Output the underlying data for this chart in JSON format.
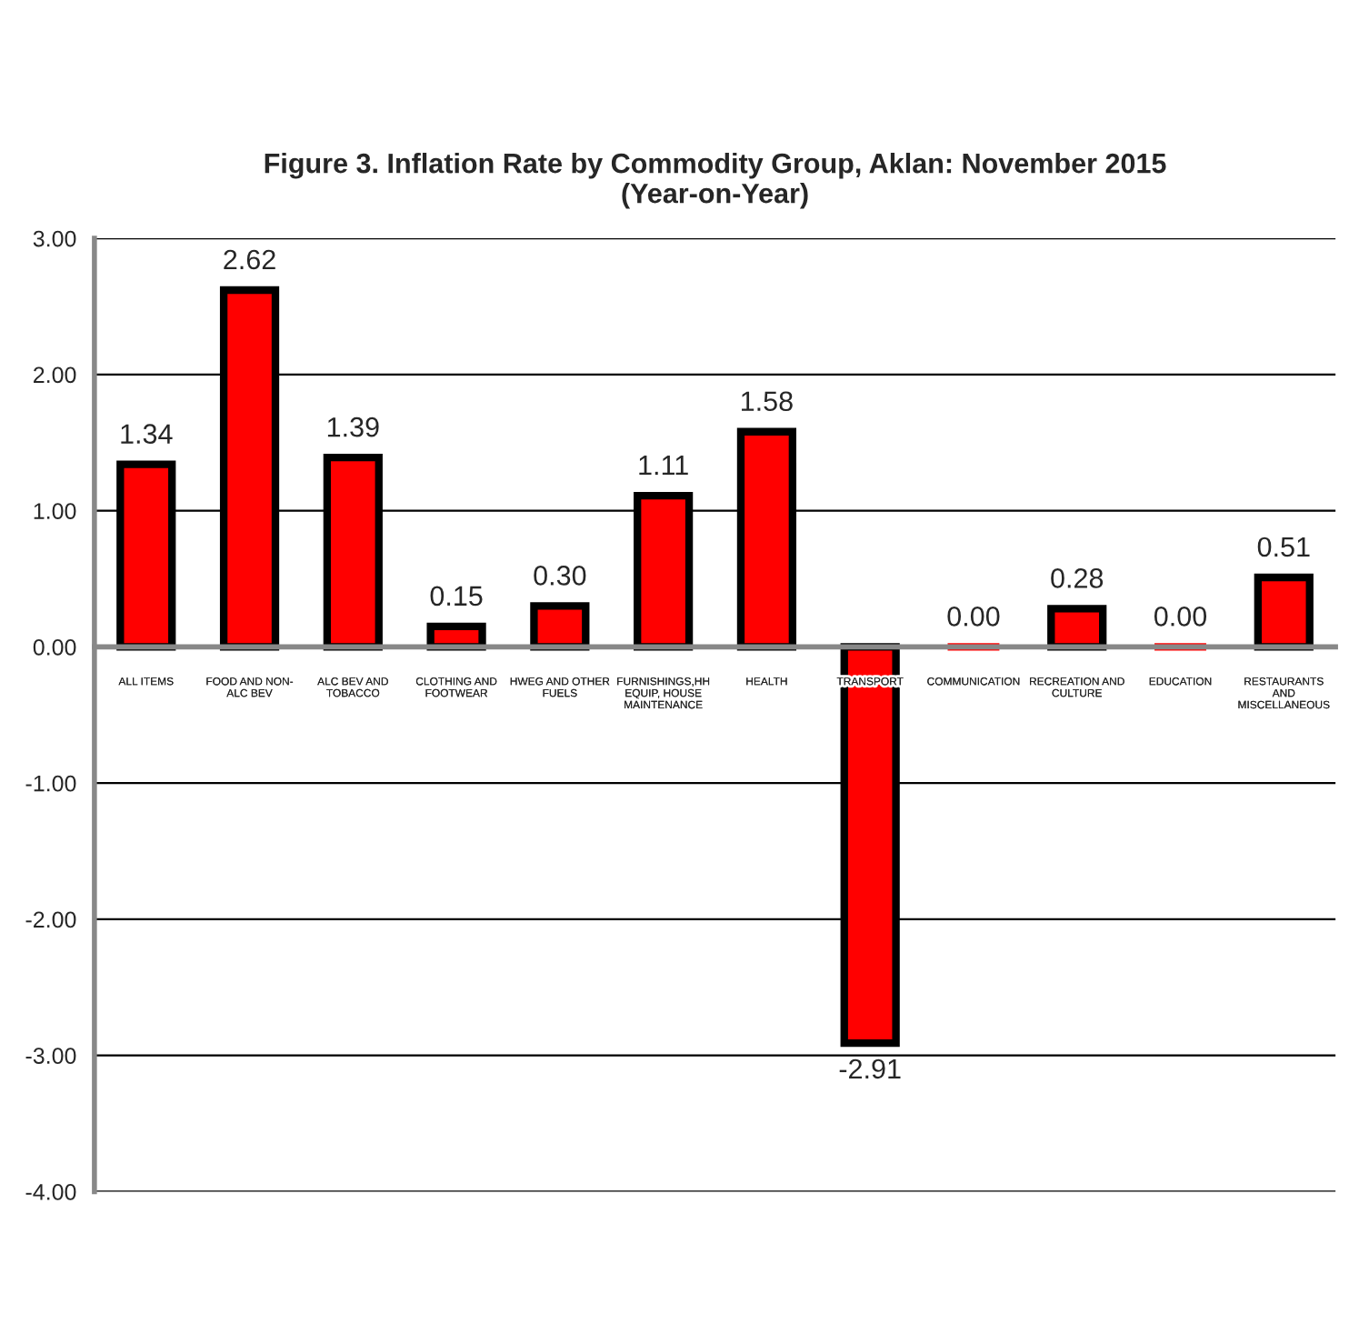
{
  "chart_data": {
    "type": "bar",
    "title": "Figure 3. Inflation Rate by Commodity Group, Aklan: November 2015\n(Year-on-Year)",
    "categories": [
      "ALL ITEMS",
      "FOOD AND NON-\nALC BEV",
      "ALC BEV AND\nTOBACCO",
      "CLOTHING AND\nFOOTWEAR",
      "HWEG AND OTHER\nFUELS",
      "FURNISHINGS,HH\nEQUIP, HOUSE\nMAINTENANCE",
      "HEALTH",
      "TRANSPORT",
      "COMMUNICATION",
      "RECREATION AND\nCULTURE",
      "EDUCATION",
      "RESTAURANTS\nAND\nMISCELLANEOUS"
    ],
    "values": [
      1.34,
      2.62,
      1.39,
      0.15,
      0.3,
      1.11,
      1.58,
      -2.91,
      0.0,
      0.28,
      0.0,
      0.51
    ],
    "value_labels": [
      "1.34",
      "2.62",
      "1.39",
      "0.15",
      "0.30",
      "1.11",
      "1.58",
      "-2.91",
      "0.00",
      "0.28",
      "0.00",
      "0.51"
    ],
    "color": "#ff0000",
    "ylim": [
      -4,
      3
    ],
    "yticks": [
      {
        "value": -4,
        "label": "-4.00"
      },
      {
        "value": -3,
        "label": "-3.00"
      },
      {
        "value": -2,
        "label": "-2.00"
      },
      {
        "value": -1,
        "label": "-1.00"
      },
      {
        "value": 0,
        "label": "0.00"
      },
      {
        "value": 1,
        "label": "1.00"
      },
      {
        "value": 2,
        "label": "2.00"
      },
      {
        "value": 3,
        "label": "3.00"
      }
    ],
    "grid": "y"
  }
}
